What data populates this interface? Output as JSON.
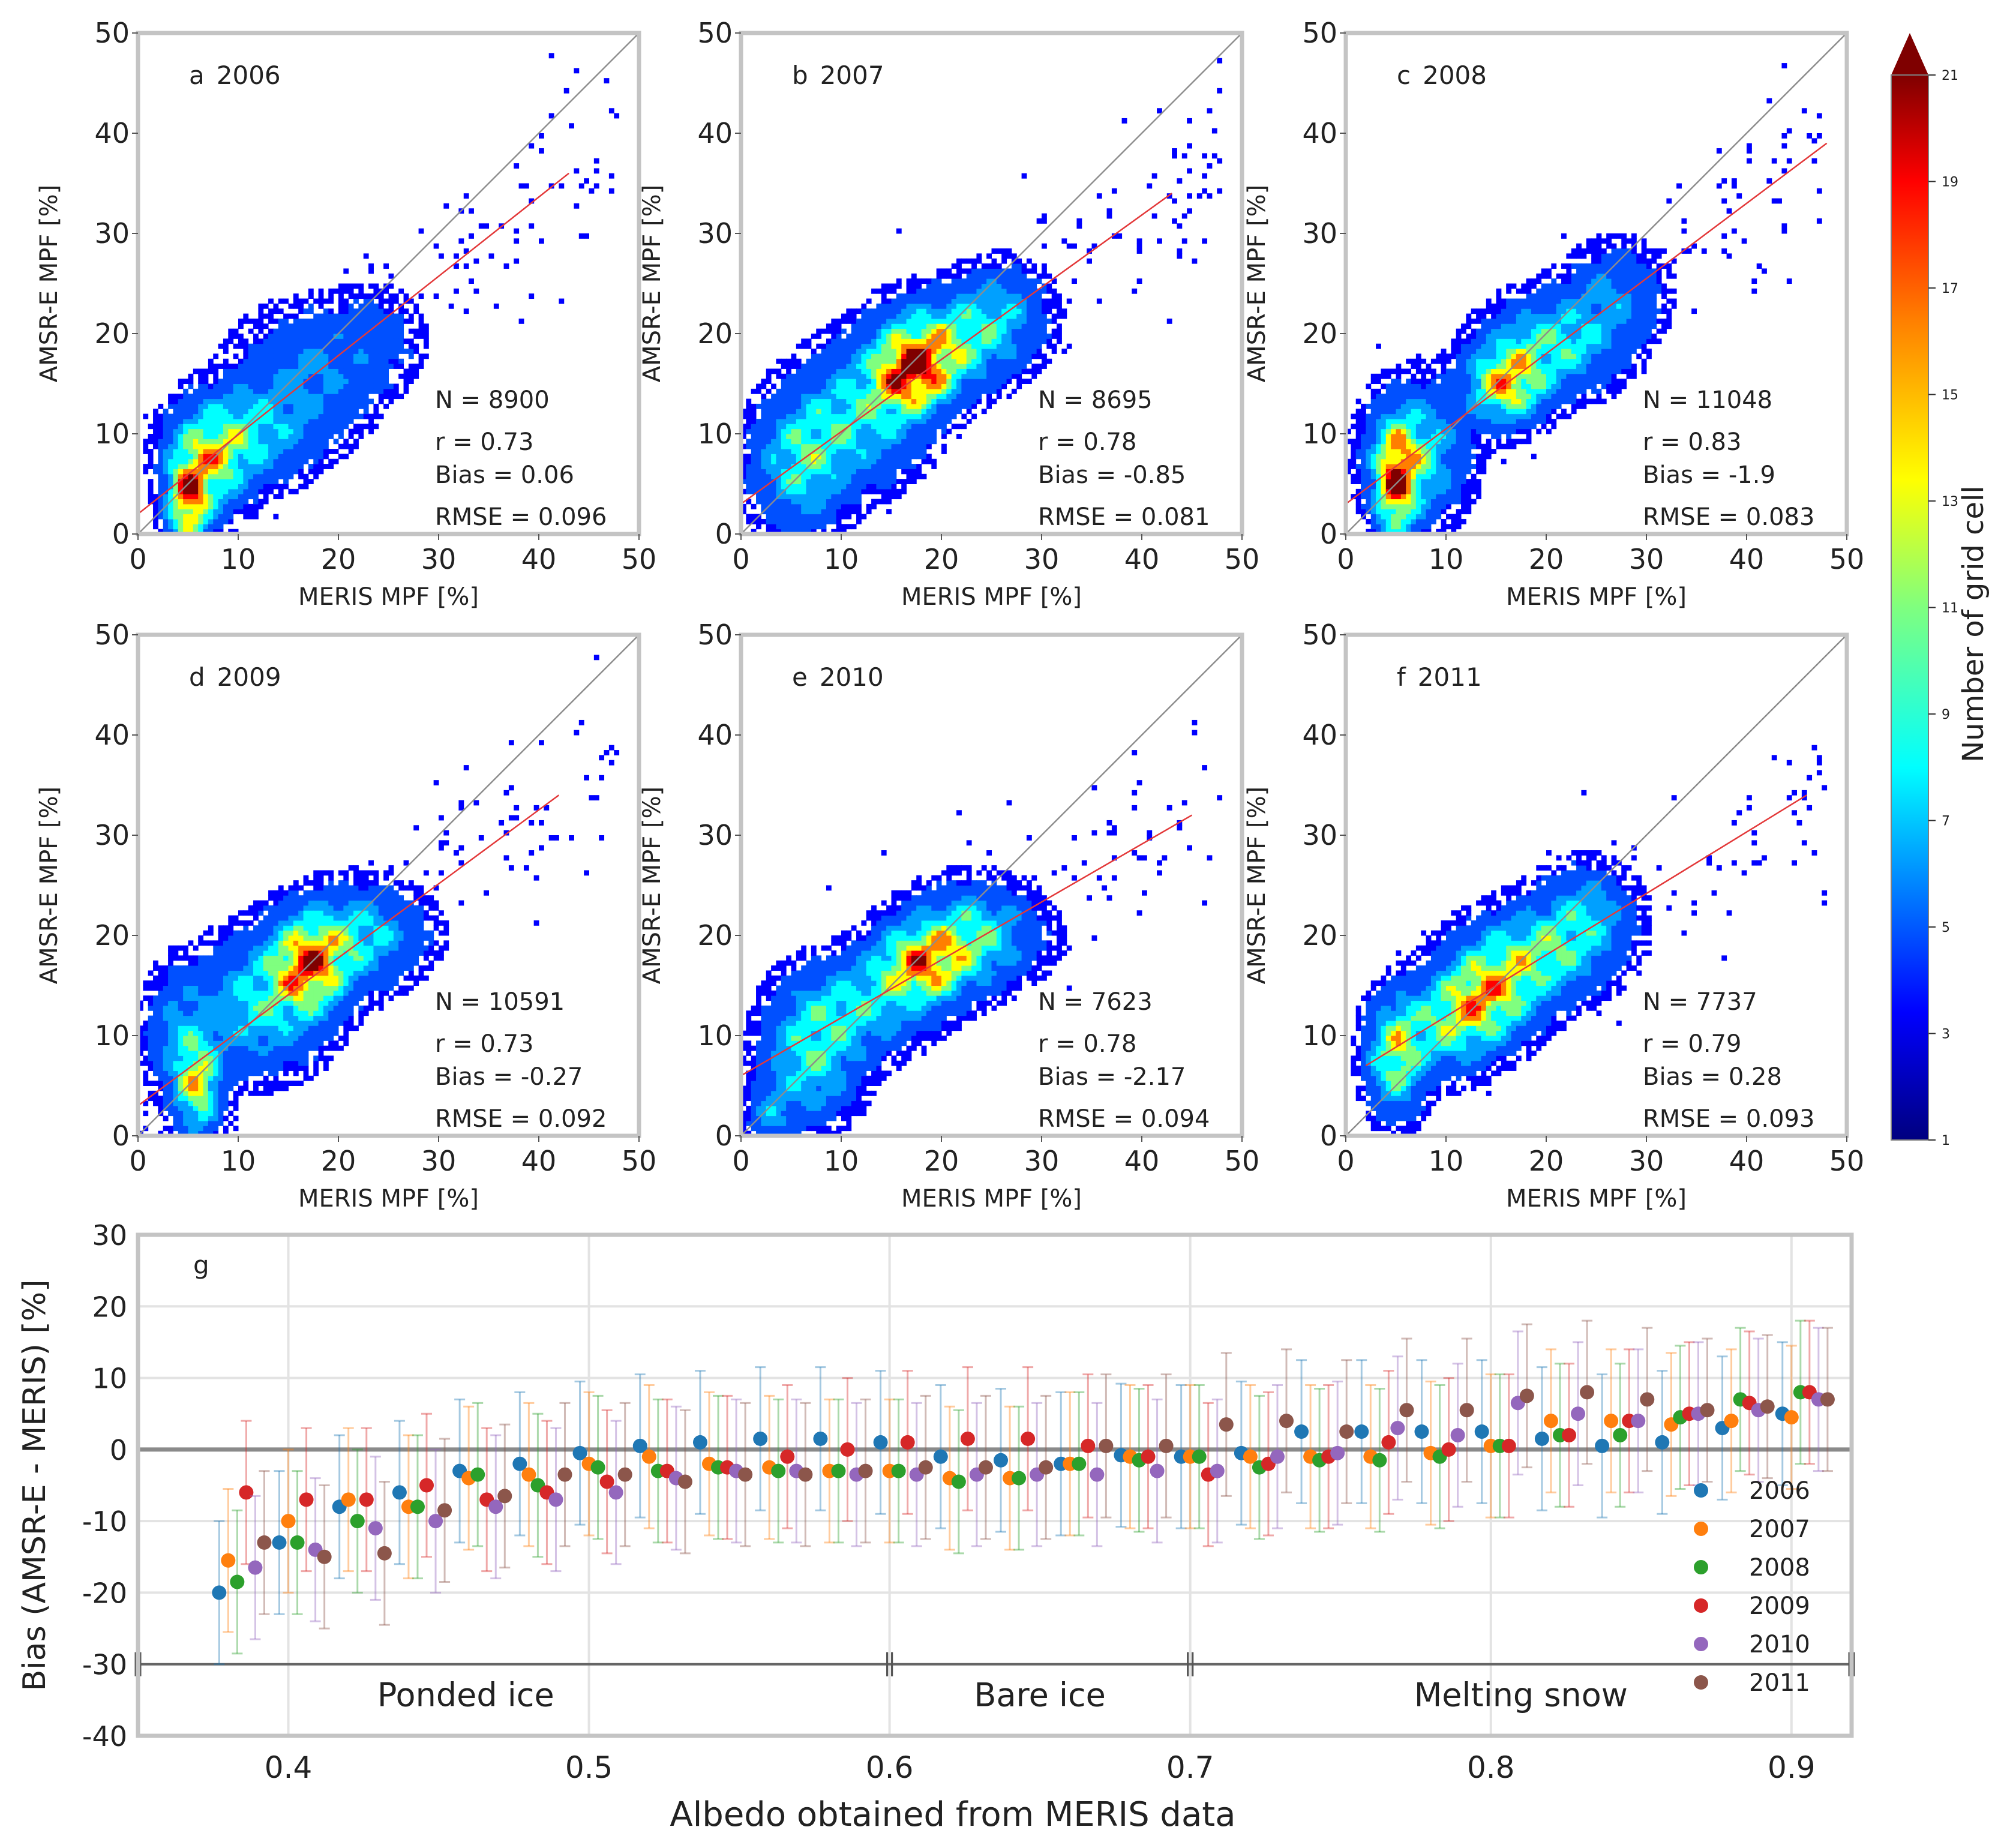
{
  "chart_data": [
    {
      "type": "scatter",
      "id": "a",
      "panel_label": "a",
      "year": "2006",
      "xlabel": "MERIS MPF [%]",
      "ylabel": "AMSR-E MPF [%]",
      "xlim": [
        0,
        50
      ],
      "ylim": [
        0,
        50
      ],
      "ticks": [
        "0",
        "10",
        "20",
        "30",
        "40",
        "50"
      ],
      "stats": {
        "n": "N = 8900",
        "r": "r = 0.73",
        "bias": "Bias = 0.06",
        "rmse": "RMSE = 0.096"
      },
      "fit": {
        "x0": 0,
        "y0": 2,
        "x1": 43,
        "y1": 36
      },
      "clusters": [
        [
          5,
          3,
          1.3,
          2.8,
          1.0
        ],
        [
          7,
          7,
          2.5,
          3.2,
          0.7
        ],
        [
          11,
          10,
          4,
          3,
          0.45
        ],
        [
          17,
          16,
          4.5,
          4,
          0.3
        ],
        [
          24,
          20,
          3,
          3,
          0.15
        ]
      ]
    },
    {
      "type": "scatter",
      "id": "b",
      "panel_label": "b",
      "year": "2007",
      "xlabel": "MERIS MPF [%]",
      "ylabel": "AMSR-E MPF [%]",
      "xlim": [
        0,
        50
      ],
      "ylim": [
        0,
        50
      ],
      "ticks": [
        "0",
        "10",
        "20",
        "30",
        "40",
        "50"
      ],
      "stats": {
        "n": "N = 8695",
        "r": "r = 0.78",
        "bias": "Bias = -0.85",
        "rmse": "RMSE = 0.081"
      },
      "fit": {
        "x0": 0,
        "y0": 3,
        "x1": 43,
        "y1": 34
      },
      "clusters": [
        [
          17,
          16,
          2.5,
          2.5,
          1.0
        ],
        [
          20,
          19,
          4,
          3,
          0.65
        ],
        [
          6,
          7,
          3,
          4,
          0.55
        ],
        [
          12,
          12,
          4,
          4,
          0.5
        ],
        [
          26,
          22,
          3,
          3,
          0.35
        ]
      ]
    },
    {
      "type": "scatter",
      "id": "c",
      "panel_label": "c",
      "year": "2008",
      "xlabel": "MERIS MPF [%]",
      "ylabel": "AMSR-E MPF [%]",
      "xlim": [
        0,
        50
      ],
      "ylim": [
        0,
        50
      ],
      "ticks": [
        "0",
        "10",
        "20",
        "30",
        "40",
        "50"
      ],
      "stats": {
        "n": "N = 11048",
        "r": "r = 0.83",
        "bias": "Bias = -1.9",
        "rmse": "RMSE = 0.083"
      },
      "fit": {
        "x0": 0,
        "y0": 3,
        "x1": 48,
        "y1": 39
      },
      "clusters": [
        [
          5,
          5,
          1.3,
          3.5,
          1.0
        ],
        [
          7,
          8,
          3,
          4,
          0.6
        ],
        [
          16,
          15,
          2.5,
          2.5,
          0.9
        ],
        [
          21,
          19,
          4,
          3,
          0.55
        ],
        [
          27,
          24,
          3,
          3,
          0.3
        ]
      ]
    },
    {
      "type": "scatter",
      "id": "d",
      "panel_label": "d",
      "year": "2009",
      "xlabel": "MERIS MPF [%]",
      "ylabel": "AMSR-E MPF [%]",
      "xlim": [
        0,
        50
      ],
      "ylim": [
        0,
        50
      ],
      "ticks": [
        "0",
        "10",
        "20",
        "30",
        "40",
        "50"
      ],
      "stats": {
        "n": "N = 10591",
        "r": "r = 0.73",
        "bias": "Bias = -0.27",
        "rmse": "RMSE = 0.092"
      },
      "fit": {
        "x0": 0,
        "y0": 3,
        "x1": 42,
        "y1": 34
      },
      "clusters": [
        [
          17,
          17,
          2.5,
          3,
          0.95
        ],
        [
          6,
          5,
          1.5,
          3,
          0.8
        ],
        [
          12,
          13,
          4,
          4,
          0.5
        ],
        [
          22,
          20,
          4,
          3,
          0.5
        ],
        [
          4,
          10,
          2,
          4,
          0.3
        ]
      ]
    },
    {
      "type": "scatter",
      "id": "e",
      "panel_label": "e",
      "year": "2010",
      "xlabel": "MERIS MPF [%]",
      "ylabel": "AMSR-E MPF [%]",
      "xlim": [
        0,
        50
      ],
      "ylim": [
        0,
        50
      ],
      "ticks": [
        "0",
        "10",
        "20",
        "30",
        "40",
        "50"
      ],
      "stats": {
        "n": "N = 7623",
        "r": "r = 0.78",
        "bias": "Bias = -2.17",
        "rmse": "RMSE = 0.094"
      },
      "fit": {
        "x0": 0,
        "y0": 6,
        "x1": 45,
        "y1": 32
      },
      "clusters": [
        [
          18,
          17,
          3,
          2.5,
          0.9
        ],
        [
          23,
          20,
          4,
          3,
          0.6
        ],
        [
          7,
          8,
          3,
          4,
          0.55
        ],
        [
          12,
          13,
          4,
          3,
          0.45
        ],
        [
          3,
          2,
          1.5,
          2,
          0.3
        ]
      ]
    },
    {
      "type": "scatter",
      "id": "f",
      "panel_label": "f",
      "year": "2011",
      "xlabel": "MERIS MPF [%]",
      "ylabel": "AMSR-E MPF [%]",
      "xlim": [
        0,
        50
      ],
      "ylim": [
        0,
        50
      ],
      "ticks": [
        "0",
        "10",
        "20",
        "30",
        "40",
        "50"
      ],
      "stats": {
        "n": "N = 7737",
        "r": "r = 0.79",
        "bias": "Bias = 0.28",
        "rmse": "RMSE = 0.093"
      },
      "fit": {
        "x0": 2,
        "y0": 7,
        "x1": 46,
        "y1": 34
      },
      "clusters": [
        [
          14,
          14,
          3,
          3,
          0.8
        ],
        [
          5,
          8,
          1.8,
          3.5,
          0.75
        ],
        [
          19,
          18,
          4,
          3,
          0.6
        ],
        [
          10,
          11,
          3,
          3,
          0.5
        ],
        [
          24,
          22,
          3,
          3,
          0.4
        ]
      ]
    },
    {
      "type": "scatter",
      "id": "g",
      "panel_label": "g",
      "xlabel": "Albedo obtained from MERIS data",
      "ylabel": "Bias (AMSR-E - MERIS) [%]",
      "xlim": [
        0.35,
        0.92
      ],
      "ylim": [
        -40,
        30
      ],
      "x_ticks": [
        0.4,
        0.5,
        0.6,
        0.7,
        0.8,
        0.9
      ],
      "x_tick_labels": [
        "0.4",
        "0.5",
        "0.6",
        "0.7",
        "0.8",
        "0.9"
      ],
      "y_ticks": [
        -40,
        -30,
        -20,
        -10,
        0,
        10,
        20,
        30
      ],
      "y_tick_labels": [
        "-40",
        "-30",
        "-20",
        "-10",
        "0",
        "10",
        "20",
        "30"
      ],
      "phases": [
        {
          "label": "Ponded ice",
          "x0": 0.35,
          "x1": 0.6
        },
        {
          "label": "Bare ice",
          "x0": 0.6,
          "x1": 0.7
        },
        {
          "label": "Melting snow",
          "x0": 0.7,
          "x1": 0.92
        }
      ],
      "phase_line_y": -30,
      "error_halfwidth": 10,
      "bin_centers": [
        0.385,
        0.405,
        0.425,
        0.445,
        0.465,
        0.485,
        0.505,
        0.525,
        0.545,
        0.565,
        0.585,
        0.605,
        0.625,
        0.645,
        0.665,
        0.685,
        0.705,
        0.725,
        0.745,
        0.765,
        0.785,
        0.805,
        0.825,
        0.845,
        0.865,
        0.885,
        0.905
      ],
      "series": [
        {
          "name": "2006",
          "color": "#1f77b4",
          "offset": -0.008,
          "values": [
            -20,
            -13,
            -8,
            -6,
            -3,
            -2,
            -0.5,
            0.5,
            1,
            1.5,
            1.5,
            1,
            -1,
            -1.5,
            -2,
            -0.8,
            -1,
            -0.5,
            2.5,
            2.5,
            2.5,
            2.5,
            1.5,
            0.5,
            1,
            3,
            5
          ]
        },
        {
          "name": "2007",
          "color": "#ff7f0e",
          "offset": -0.005,
          "values": [
            -15.5,
            -10,
            -7,
            -8,
            -4,
            -3.5,
            -2,
            -1,
            -2,
            -2.5,
            -3,
            -3,
            -4,
            -4,
            -2,
            -1,
            -1,
            -1,
            -1,
            -1,
            -0.5,
            0.5,
            4,
            4,
            3.5,
            4,
            4.5
          ]
        },
        {
          "name": "2008",
          "color": "#2ca02c",
          "offset": -0.002,
          "values": [
            -18.5,
            -13,
            -10,
            -8,
            -3.5,
            -5,
            -2.5,
            -3,
            -2.5,
            -3,
            -3,
            -3,
            -4.5,
            -4,
            -2,
            -1.5,
            -1,
            -2.5,
            -1.5,
            -1.5,
            -1,
            0.5,
            2,
            2,
            4.5,
            7,
            8
          ]
        },
        {
          "name": "2009",
          "color": "#d62728",
          "offset": 0.001,
          "values": [
            -6,
            -7,
            -7,
            -5,
            -7,
            -6,
            -4.5,
            -3,
            -2.5,
            -1,
            0,
            1,
            1.5,
            1.5,
            0.5,
            -1,
            -3.5,
            -2,
            -1,
            1,
            0,
            0.5,
            2,
            4,
            5,
            6.5,
            8
          ]
        },
        {
          "name": "2010",
          "color": "#9467bd",
          "offset": 0.004,
          "values": [
            -16.5,
            -14,
            -11,
            -10,
            -8,
            -7,
            -6,
            -4,
            -3,
            -3,
            -3.5,
            -3.5,
            -3.5,
            -3.5,
            -3.5,
            -3,
            -3,
            -1,
            -0.5,
            3,
            2,
            6.5,
            5,
            4,
            5,
            5.5,
            7
          ]
        },
        {
          "name": "2011",
          "color": "#8c564b",
          "offset": 0.007,
          "values": [
            -13,
            -15,
            -14.5,
            -8.5,
            -6.5,
            -3.5,
            -3.5,
            -4.5,
            -3.5,
            -3.5,
            -3,
            -2.5,
            -2.5,
            -2.5,
            0.5,
            0.5,
            3.5,
            4,
            2.5,
            5.5,
            5.5,
            7.5,
            8,
            7,
            5.5,
            6,
            7
          ]
        }
      ]
    }
  ],
  "colorbar": {
    "label": "Number of grid cell",
    "ticks": [
      "1",
      "3",
      "5",
      "7",
      "9",
      "11",
      "13",
      "15",
      "17",
      "19",
      "21"
    ],
    "min": 1,
    "max": 21,
    "extend": "max",
    "colors": [
      "#00007f",
      "#0000ff",
      "#007fff",
      "#00ffff",
      "#7fff7f",
      "#ffff00",
      "#ff7f00",
      "#ff0000",
      "#7f0000"
    ]
  }
}
